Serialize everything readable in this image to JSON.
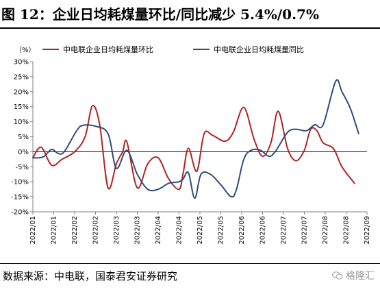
{
  "figure_title": "图 12：企业日均耗煤量环比/同比减少 5.4%/0.7%",
  "source_note": "数据来源：中电联，国泰君安证券研究",
  "watermark_text": "格隆汇",
  "colors": {
    "mom": "#b22222",
    "yoy": "#2e4a7a",
    "zero_line": "#000000",
    "axis": "#7f7f7f"
  },
  "chart_data": {
    "type": "line",
    "title": "",
    "unit_label": "（%）",
    "xlabel": "",
    "ylabel": "",
    "ylim": [
      -20,
      30
    ],
    "yticks": [
      "30%",
      "25%",
      "20%",
      "15%",
      "10%",
      "5%",
      "0%",
      "-5%",
      "-10%",
      "-15%",
      "-20%"
    ],
    "ytick_values": [
      30,
      25,
      20,
      15,
      10,
      5,
      0,
      -5,
      -10,
      -15,
      -20
    ],
    "x_categories": [
      "2022/01",
      "2022/01",
      "2022/02",
      "2022/02",
      "2022/03",
      "2022/03",
      "2022/04",
      "2022/04",
      "2022/05",
      "2022/05",
      "2022/06",
      "2022/06",
      "2022/07",
      "2022/07",
      "2022/08",
      "2022/08",
      "2022/09"
    ],
    "grid": false,
    "legend_position": "top",
    "series": [
      {
        "name": "中电联企业日均耗煤量环比",
        "color_key": "mom",
        "points": [
          [
            0.0,
            -2.0
          ],
          [
            0.4,
            1.5
          ],
          [
            0.9,
            -4.5
          ],
          [
            1.4,
            -2.5
          ],
          [
            2.0,
            0.0
          ],
          [
            2.5,
            5.0
          ],
          [
            2.85,
            15.3
          ],
          [
            3.2,
            9.0
          ],
          [
            3.6,
            -12.0
          ],
          [
            4.0,
            -4.0
          ],
          [
            4.3,
            0.0
          ],
          [
            4.5,
            3.3
          ],
          [
            5.0,
            -12.0
          ],
          [
            5.5,
            -4.0
          ],
          [
            6.0,
            -2.0
          ],
          [
            6.5,
            -9.0
          ],
          [
            7.0,
            -12.5
          ],
          [
            7.2,
            -7.0
          ],
          [
            7.45,
            1.2
          ],
          [
            7.85,
            -6.5
          ],
          [
            8.2,
            6.0
          ],
          [
            8.6,
            5.5
          ],
          [
            9.2,
            3.5
          ],
          [
            9.6,
            6.5
          ],
          [
            10.1,
            14.8
          ],
          [
            10.6,
            4.0
          ],
          [
            11.0,
            -1.5
          ],
          [
            11.4,
            3.0
          ],
          [
            11.75,
            13.5
          ],
          [
            12.2,
            1.0
          ],
          [
            12.6,
            -3.0
          ],
          [
            13.0,
            0.5
          ],
          [
            13.3,
            7.5
          ],
          [
            13.6,
            7.0
          ],
          [
            13.9,
            3.0
          ],
          [
            14.4,
            1.0
          ],
          [
            14.8,
            -5.0
          ],
          [
            15.4,
            -10.5
          ]
        ]
      },
      {
        "name": "中电联企业日均耗煤量同比",
        "color_key": "yoy",
        "points": [
          [
            0.0,
            -2.0
          ],
          [
            0.3,
            -2.0
          ],
          [
            0.55,
            -1.5
          ],
          [
            0.9,
            0.8
          ],
          [
            1.2,
            -0.5
          ],
          [
            1.5,
            0.0
          ],
          [
            2.1,
            7.0
          ],
          [
            2.4,
            8.8
          ],
          [
            3.0,
            8.5
          ],
          [
            3.6,
            6.0
          ],
          [
            4.0,
            -5.5
          ],
          [
            4.5,
            0.5
          ],
          [
            5.0,
            -7.5
          ],
          [
            5.5,
            -12.5
          ],
          [
            6.0,
            -12.5
          ],
          [
            6.5,
            -10.5
          ],
          [
            7.0,
            -10.0
          ],
          [
            7.2,
            -9.0
          ],
          [
            7.45,
            -7.0
          ],
          [
            7.75,
            -15.5
          ],
          [
            8.05,
            -7.5
          ],
          [
            8.5,
            -7.5
          ],
          [
            9.0,
            -11.0
          ],
          [
            9.5,
            -15.0
          ],
          [
            9.75,
            -12.5
          ],
          [
            10.1,
            -2.5
          ],
          [
            10.45,
            0.5
          ],
          [
            10.9,
            0.5
          ],
          [
            11.3,
            -1.5
          ],
          [
            11.6,
            0.0
          ],
          [
            12.2,
            6.5
          ],
          [
            12.6,
            7.5
          ],
          [
            13.1,
            7.0
          ],
          [
            13.5,
            9.0
          ],
          [
            13.9,
            9.0
          ],
          [
            14.5,
            23.5
          ],
          [
            14.8,
            20.0
          ],
          [
            15.2,
            14.5
          ],
          [
            15.6,
            6.0
          ]
        ]
      }
    ]
  }
}
